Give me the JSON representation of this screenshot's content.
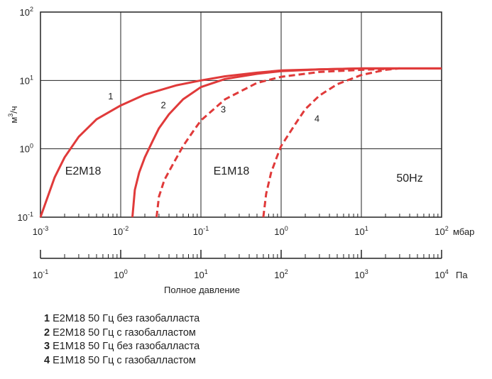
{
  "chart_data": {
    "type": "line",
    "x_scale": "log",
    "y_scale": "log",
    "grid": true,
    "xlim": [
      0.001,
      100
    ],
    "ylim": [
      0.1,
      100
    ],
    "x_unit": "мбар",
    "x_ticks": [
      {
        "base": "10",
        "exp": "-3"
      },
      {
        "base": "10",
        "exp": "-2"
      },
      {
        "base": "10",
        "exp": "-1"
      },
      {
        "base": "10",
        "exp": "0"
      },
      {
        "base": "10",
        "exp": "1"
      },
      {
        "base": "10",
        "exp": "2"
      }
    ],
    "y_ticks": [
      {
        "base": "10",
        "exp": "-1"
      },
      {
        "base": "10",
        "exp": "0"
      },
      {
        "base": "10",
        "exp": "1"
      },
      {
        "base": "10",
        "exp": "2"
      }
    ],
    "ylabel": {
      "base": "м",
      "exp": "3",
      "tail": "/ч"
    },
    "secondary_axis": {
      "unit": "Па",
      "label": "Полное давление",
      "ticks": [
        {
          "base": "10",
          "exp": "-1"
        },
        {
          "base": "10",
          "exp": "0"
        },
        {
          "base": "10",
          "exp": "1"
        },
        {
          "base": "10",
          "exp": "2"
        },
        {
          "base": "10",
          "exp": "3"
        },
        {
          "base": "10",
          "exp": "4"
        }
      ]
    },
    "annotations": [
      {
        "text": "E2M18",
        "x": 0.0034,
        "y": 0.42
      },
      {
        "text": "E1M18",
        "x": 0.24,
        "y": 0.42
      },
      {
        "text": "50Hz",
        "x": 40,
        "y": 0.33
      }
    ],
    "series": [
      {
        "label": "1",
        "style": "solid",
        "x": [
          0.001,
          0.0015,
          0.002,
          0.003,
          0.005,
          0.01,
          0.02,
          0.05,
          0.1,
          0.2,
          0.5,
          1,
          3,
          10,
          100
        ],
        "y": [
          0.1,
          0.38,
          0.75,
          1.5,
          2.7,
          4.3,
          6.2,
          8.5,
          10,
          11.5,
          13,
          14,
          14.5,
          15,
          15
        ],
        "label_pos": {
          "x": 0.0075,
          "y": 5.3
        }
      },
      {
        "label": "2",
        "style": "solid",
        "x": [
          0.014,
          0.015,
          0.017,
          0.02,
          0.025,
          0.03,
          0.04,
          0.06,
          0.1,
          0.2,
          0.5,
          1,
          3,
          10,
          100
        ],
        "y": [
          0.1,
          0.25,
          0.45,
          0.75,
          1.3,
          2,
          3.2,
          5.3,
          8,
          10.5,
          12.5,
          13.7,
          14.5,
          15,
          15
        ],
        "label_pos": {
          "x": 0.034,
          "y": 3.9
        }
      },
      {
        "label": "3",
        "style": "dashed",
        "x": [
          0.028,
          0.03,
          0.035,
          0.045,
          0.06,
          0.08,
          0.1,
          0.2,
          0.5,
          1,
          3,
          10,
          30
        ],
        "y": [
          0.1,
          0.2,
          0.35,
          0.6,
          1.1,
          1.8,
          2.6,
          5.3,
          9.2,
          11.3,
          13.3,
          14.3,
          15
        ],
        "label_pos": {
          "x": 0.19,
          "y": 3.4
        }
      },
      {
        "label": "4",
        "style": "dashed",
        "x": [
          0.6,
          0.65,
          0.75,
          0.9,
          1,
          1.5,
          2,
          3,
          5,
          10,
          20,
          30
        ],
        "y": [
          0.1,
          0.22,
          0.45,
          0.8,
          1.1,
          2.3,
          3.8,
          6,
          8.8,
          12,
          14.3,
          15
        ],
        "label_pos": {
          "x": 2.8,
          "y": 2.5
        }
      }
    ]
  },
  "legend": [
    {
      "num": "1",
      "text": "E2M18 50 Гц без газобалласта"
    },
    {
      "num": "2",
      "text": "E2M18 50 Гц с газобалластом"
    },
    {
      "num": "3",
      "text": "E1M18 50 Гц без газобалласта"
    },
    {
      "num": "4",
      "text": "E1M18 50 Гц с газобалластом"
    }
  ],
  "colors": {
    "curve": "#e03a3a",
    "grid": "#222222",
    "frame": "#222222"
  }
}
